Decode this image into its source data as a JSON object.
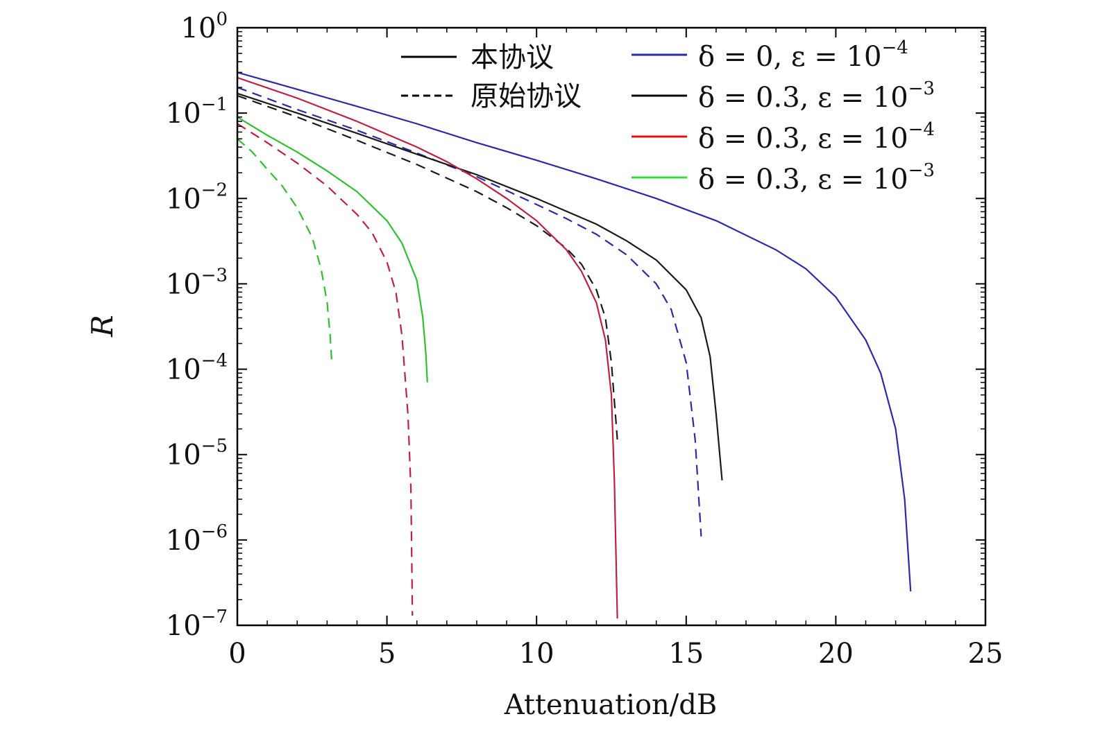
{
  "chart_data": {
    "type": "line",
    "xlabel": "Attenuation/dB",
    "ylabel": "R",
    "xlim": [
      0,
      25
    ],
    "ylim_exp": [
      -7,
      0
    ],
    "yscale": "log",
    "grid": false,
    "legend_placement": "top-right",
    "x_ticks": [
      "0",
      "5",
      "10",
      "15",
      "20",
      "25"
    ],
    "y_ticks": [
      {
        "base": "10",
        "exp": "0"
      },
      {
        "base": "10",
        "exp": "−1"
      },
      {
        "base": "10",
        "exp": "−2"
      },
      {
        "base": "10",
        "exp": "−3"
      },
      {
        "base": "10",
        "exp": "−4"
      },
      {
        "base": "10",
        "exp": "−5"
      },
      {
        "base": "10",
        "exp": "−6"
      },
      {
        "base": "10",
        "exp": "−7"
      }
    ],
    "style_legend": [
      {
        "label": "本协议",
        "dash": "solid"
      },
      {
        "label": "原始协议",
        "dash": "dashed"
      }
    ],
    "param_legend": [
      {
        "label": "δ = 0, ε = 10",
        "exp": "−4",
        "color": "#2a2aa8"
      },
      {
        "label": "δ = 0.3, ε = 10",
        "exp": "−3",
        "color": "#000000"
      },
      {
        "label": "δ = 0.3, ε = 10",
        "exp": "−4",
        "color": "#e01010"
      },
      {
        "label": "δ = 0.3, ε = 10",
        "exp": "−3",
        "color": "#30e030"
      }
    ],
    "series": [
      {
        "color": "#2a2aa8",
        "dash": "solid",
        "points": [
          [
            0,
            0.3
          ],
          [
            2,
            0.19
          ],
          [
            4,
            0.12
          ],
          [
            6,
            0.075
          ],
          [
            8,
            0.045
          ],
          [
            10,
            0.028
          ],
          [
            12,
            0.017
          ],
          [
            14,
            0.01
          ],
          [
            16,
            0.0055
          ],
          [
            18,
            0.0025
          ],
          [
            19,
            0.0015
          ],
          [
            20,
            0.0007
          ],
          [
            21,
            0.00022
          ],
          [
            21.5,
            9e-05
          ],
          [
            22,
            2e-05
          ],
          [
            22.3,
            3e-06
          ],
          [
            22.5,
            2.5e-07
          ]
        ]
      },
      {
        "color": "#2a2aa8",
        "dash": "dashed",
        "points": [
          [
            0,
            0.2
          ],
          [
            2,
            0.11
          ],
          [
            4,
            0.063
          ],
          [
            6,
            0.034
          ],
          [
            8,
            0.018
          ],
          [
            10,
            0.0085
          ],
          [
            11,
            0.0058
          ],
          [
            12,
            0.0038
          ],
          [
            13,
            0.0022
          ],
          [
            14,
            0.001
          ],
          [
            14.5,
            0.0005
          ],
          [
            15,
            0.00012
          ],
          [
            15.3,
            1.5e-05
          ],
          [
            15.5,
            1.1e-06
          ]
        ]
      },
      {
        "color": "#1a1a1a",
        "dash": "solid",
        "points": [
          [
            0,
            0.17
          ],
          [
            2,
            0.1
          ],
          [
            4,
            0.058
          ],
          [
            6,
            0.033
          ],
          [
            8,
            0.019
          ],
          [
            10,
            0.01
          ],
          [
            12,
            0.005
          ],
          [
            13,
            0.0032
          ],
          [
            14,
            0.0019
          ],
          [
            15,
            0.00085
          ],
          [
            15.5,
            0.0004
          ],
          [
            15.8,
            0.00014
          ],
          [
            16,
            3e-05
          ],
          [
            16.2,
            5e-06
          ]
        ]
      },
      {
        "color": "#1a1a1a",
        "dash": "dashed",
        "points": [
          [
            0,
            0.16
          ],
          [
            2,
            0.09
          ],
          [
            4,
            0.048
          ],
          [
            6,
            0.025
          ],
          [
            8,
            0.012
          ],
          [
            9,
            0.0078
          ],
          [
            10,
            0.0048
          ],
          [
            11,
            0.0026
          ],
          [
            11.5,
            0.0017
          ],
          [
            12,
            0.00085
          ],
          [
            12.3,
            0.0004
          ],
          [
            12.5,
            0.00012
          ],
          [
            12.7,
            1.5e-05
          ]
        ]
      },
      {
        "color": "#c02040",
        "dash": "solid",
        "points": [
          [
            0,
            0.26
          ],
          [
            2,
            0.15
          ],
          [
            4,
            0.08
          ],
          [
            6,
            0.04
          ],
          [
            7,
            0.027
          ],
          [
            8,
            0.017
          ],
          [
            9,
            0.01
          ],
          [
            10,
            0.0055
          ],
          [
            11,
            0.0025
          ],
          [
            11.5,
            0.0014
          ],
          [
            12,
            0.0006
          ],
          [
            12.3,
            0.00022
          ],
          [
            12.5,
            5e-05
          ],
          [
            12.6,
            5e-06
          ],
          [
            12.7,
            1.2e-07
          ]
        ]
      },
      {
        "color": "#c02040",
        "dash": "dashed",
        "points": [
          [
            0,
            0.075
          ],
          [
            1,
            0.045
          ],
          [
            2,
            0.026
          ],
          [
            3,
            0.014
          ],
          [
            4,
            0.0065
          ],
          [
            4.5,
            0.004
          ],
          [
            5,
            0.0018
          ],
          [
            5.3,
            0.0008
          ],
          [
            5.5,
            0.00025
          ],
          [
            5.7,
            3e-05
          ],
          [
            5.8,
            4e-06
          ],
          [
            5.85,
            1.3e-07
          ]
        ]
      },
      {
        "color": "#2ec02e",
        "dash": "solid",
        "points": [
          [
            0,
            0.09
          ],
          [
            1,
            0.055
          ],
          [
            2,
            0.035
          ],
          [
            3,
            0.021
          ],
          [
            4,
            0.012
          ],
          [
            5,
            0.0055
          ],
          [
            5.5,
            0.003
          ],
          [
            6,
            0.0011
          ],
          [
            6.2,
            0.0004
          ],
          [
            6.3,
            0.00015
          ],
          [
            6.35,
            7e-05
          ]
        ]
      },
      {
        "color": "#2ec02e",
        "dash": "dashed",
        "points": [
          [
            0,
            0.05
          ],
          [
            0.5,
            0.035
          ],
          [
            1,
            0.022
          ],
          [
            1.5,
            0.014
          ],
          [
            2,
            0.0078
          ],
          [
            2.5,
            0.0035
          ],
          [
            2.8,
            0.0015
          ],
          [
            3,
            0.0006
          ],
          [
            3.1,
            0.00025
          ],
          [
            3.15,
            0.00013
          ]
        ]
      }
    ]
  }
}
